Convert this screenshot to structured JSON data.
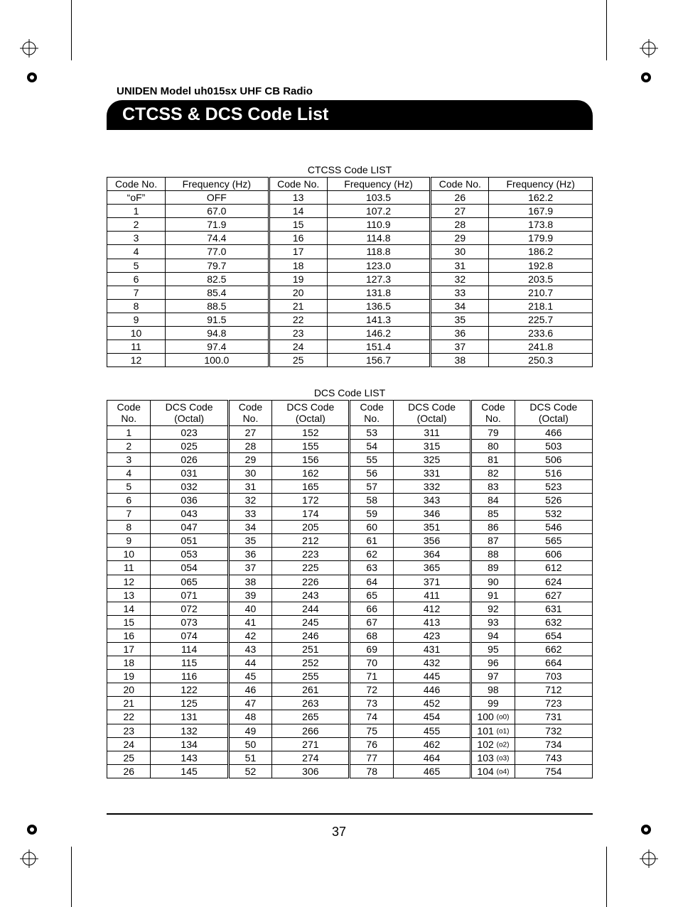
{
  "header": {
    "model_line": "UNIDEN Model uh015sx UHF CB Radio",
    "title": "CTCSS & DCS Code List"
  },
  "page_number": "37",
  "ctcss": {
    "title": "CTCSS Code LIST",
    "columns": [
      "Code No.",
      "Frequency (Hz)",
      "Code No.",
      "Frequency (Hz)",
      "Code No.",
      "Frequency (Hz)"
    ],
    "rows": [
      [
        "“oF”",
        "OFF",
        "13",
        "103.5",
        "26",
        "162.2"
      ],
      [
        "1",
        "67.0",
        "14",
        "107.2",
        "27",
        "167.9"
      ],
      [
        "2",
        "71.9",
        "15",
        "110.9",
        "28",
        "173.8"
      ],
      [
        "3",
        "74.4",
        "16",
        "114.8",
        "29",
        "179.9"
      ],
      [
        "4",
        "77.0",
        "17",
        "118.8",
        "30",
        "186.2"
      ],
      [
        "5",
        "79.7",
        "18",
        "123.0",
        "31",
        "192.8"
      ],
      [
        "6",
        "82.5",
        "19",
        "127.3",
        "32",
        "203.5"
      ],
      [
        "7",
        "85.4",
        "20",
        "131.8",
        "33",
        "210.7"
      ],
      [
        "8",
        "88.5",
        "21",
        "136.5",
        "34",
        "218.1"
      ],
      [
        "9",
        "91.5",
        "22",
        "141.3",
        "35",
        "225.7"
      ],
      [
        "10",
        "94.8",
        "23",
        "146.2",
        "36",
        "233.6"
      ],
      [
        "11",
        "97.4",
        "24",
        "151.4",
        "37",
        "241.8"
      ],
      [
        "12",
        "100.0",
        "25",
        "156.7",
        "38",
        "250.3"
      ]
    ],
    "col_widths": [
      "12%",
      "21.3%",
      "12%",
      "21.3%",
      "12%",
      "21.3%"
    ]
  },
  "dcs": {
    "title": "DCS Code LIST",
    "header_lines": {
      "code_l1": "Code",
      "code_l2": "No.",
      "dcs_l1": "DCS Code",
      "dcs_l2": "(Octal)"
    },
    "rows": [
      [
        "1",
        "023",
        "27",
        "152",
        "53",
        "311",
        "79",
        "466"
      ],
      [
        "2",
        "025",
        "28",
        "155",
        "54",
        "315",
        "80",
        "503"
      ],
      [
        "3",
        "026",
        "29",
        "156",
        "55",
        "325",
        "81",
        "506"
      ],
      [
        "4",
        "031",
        "30",
        "162",
        "56",
        "331",
        "82",
        "516"
      ],
      [
        "5",
        "032",
        "31",
        "165",
        "57",
        "332",
        "83",
        "523"
      ],
      [
        "6",
        "036",
        "32",
        "172",
        "58",
        "343",
        "84",
        "526"
      ],
      [
        "7",
        "043",
        "33",
        "174",
        "59",
        "346",
        "85",
        "532"
      ],
      [
        "8",
        "047",
        "34",
        "205",
        "60",
        "351",
        "86",
        "546"
      ],
      [
        "9",
        "051",
        "35",
        "212",
        "61",
        "356",
        "87",
        "565"
      ],
      [
        "10",
        "053",
        "36",
        "223",
        "62",
        "364",
        "88",
        "606"
      ],
      [
        "11",
        "054",
        "37",
        "225",
        "63",
        "365",
        "89",
        "612"
      ],
      [
        "12",
        "065",
        "38",
        "226",
        "64",
        "371",
        "90",
        "624"
      ],
      [
        "13",
        "071",
        "39",
        "243",
        "65",
        "411",
        "91",
        "627"
      ],
      [
        "14",
        "072",
        "40",
        "244",
        "66",
        "412",
        "92",
        "631"
      ],
      [
        "15",
        "073",
        "41",
        "245",
        "67",
        "413",
        "93",
        "632"
      ],
      [
        "16",
        "074",
        "42",
        "246",
        "68",
        "423",
        "94",
        "654"
      ],
      [
        "17",
        "114",
        "43",
        "251",
        "69",
        "431",
        "95",
        "662"
      ],
      [
        "18",
        "115",
        "44",
        "252",
        "70",
        "432",
        "96",
        "664"
      ],
      [
        "19",
        "116",
        "45",
        "255",
        "71",
        "445",
        "97",
        "703"
      ],
      [
        "20",
        "122",
        "46",
        "261",
        "72",
        "446",
        "98",
        "712"
      ],
      [
        "21",
        "125",
        "47",
        "263",
        "73",
        "452",
        "99",
        "723"
      ],
      [
        "22",
        "131",
        "48",
        "265",
        "74",
        "454",
        "100 (o0)",
        "731"
      ],
      [
        "23",
        "132",
        "49",
        "266",
        "75",
        "455",
        "101 (o1)",
        "732"
      ],
      [
        "24",
        "134",
        "50",
        "271",
        "76",
        "462",
        "102 (o2)",
        "734"
      ],
      [
        "25",
        "143",
        "51",
        "274",
        "77",
        "464",
        "103 (o3)",
        "743"
      ],
      [
        "26",
        "145",
        "52",
        "306",
        "78",
        "465",
        "104 (o4)",
        "754"
      ]
    ],
    "col_widths": [
      "9%",
      "16%",
      "9%",
      "16%",
      "9%",
      "16%",
      "9%",
      "16%"
    ]
  },
  "styling": {
    "font_family": "Arial",
    "body_font_size_pt": 10.5,
    "title_font_size_pt": 19,
    "header_font_size_pt": 11,
    "title_bar_bg": "#000000",
    "title_bar_fg": "#ffffff",
    "border_color": "#000000",
    "page_bg": "#ffffff"
  }
}
